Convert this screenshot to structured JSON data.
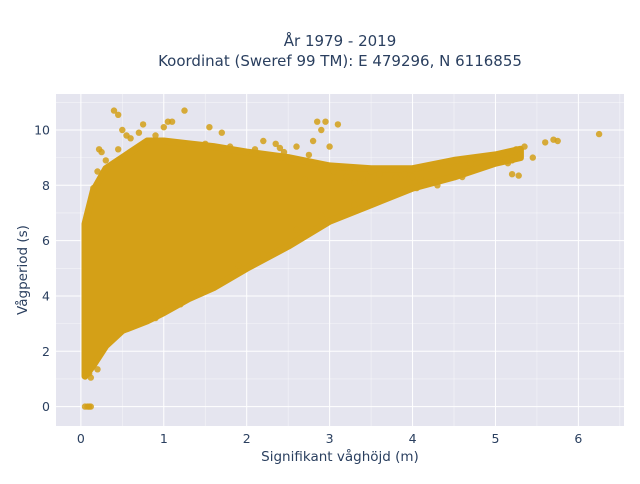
{
  "chart_data": {
    "type": "scatter",
    "title_lines": [
      "År 1979 - 2019",
      "Koordinat (Sweref 99 TM): E 479296, N 6116855"
    ],
    "xlabel": "Signifikant våghöjd (m)",
    "ylabel": "Vågperiod (s)",
    "xlim": [
      -0.3,
      6.55
    ],
    "ylim": [
      -0.7,
      11.3
    ],
    "xticks": [
      0,
      1,
      2,
      3,
      4,
      5,
      6
    ],
    "yticks": [
      0,
      2,
      4,
      6,
      8,
      10
    ],
    "grid": true,
    "legend": "none",
    "colors": {
      "marker": "#d4a017",
      "plot_background": "#e5e5ef",
      "grid": "#ffffff",
      "text": "#2a3f5f"
    },
    "envelope": {
      "description_hidden": true,
      "lower": [
        [
          0.05,
          1.1
        ],
        [
          0.15,
          1.5
        ],
        [
          0.3,
          2.2
        ],
        [
          0.5,
          2.75
        ],
        [
          0.8,
          3.1
        ],
        [
          1.0,
          3.4
        ],
        [
          1.3,
          3.9
        ],
        [
          1.6,
          4.3
        ],
        [
          2.0,
          5.0
        ],
        [
          2.5,
          5.8
        ],
        [
          3.0,
          6.7
        ],
        [
          3.5,
          7.3
        ],
        [
          4.0,
          7.9
        ],
        [
          4.5,
          8.3
        ],
        [
          5.0,
          8.8
        ],
        [
          5.3,
          9.0
        ]
      ],
      "upper": [
        [
          0.05,
          6.6
        ],
        [
          0.15,
          7.8
        ],
        [
          0.3,
          8.6
        ],
        [
          0.5,
          9.0
        ],
        [
          0.8,
          9.6
        ],
        [
          1.0,
          9.6
        ],
        [
          1.3,
          9.5
        ],
        [
          1.6,
          9.4
        ],
        [
          2.0,
          9.2
        ],
        [
          2.5,
          9.0
        ],
        [
          3.0,
          8.7
        ],
        [
          3.5,
          8.6
        ],
        [
          4.0,
          8.6
        ],
        [
          4.5,
          8.9
        ],
        [
          5.0,
          9.1
        ],
        [
          5.3,
          9.3
        ]
      ]
    },
    "points": [
      [
        0.05,
        0.0
      ],
      [
        0.08,
        0.0
      ],
      [
        0.1,
        0.0
      ],
      [
        0.12,
        0.0
      ],
      [
        0.05,
        1.6
      ],
      [
        0.1,
        1.2
      ],
      [
        0.12,
        1.05
      ],
      [
        0.2,
        1.35
      ],
      [
        0.06,
        2.0
      ],
      [
        0.08,
        3.3
      ],
      [
        0.05,
        4.5
      ],
      [
        0.05,
        5.5
      ],
      [
        0.07,
        6.6
      ],
      [
        0.4,
        10.7
      ],
      [
        0.45,
        10.55
      ],
      [
        0.5,
        10.0
      ],
      [
        0.55,
        9.8
      ],
      [
        0.6,
        9.7
      ],
      [
        0.7,
        9.9
      ],
      [
        0.75,
        10.2
      ],
      [
        0.9,
        9.8
      ],
      [
        1.0,
        10.1
      ],
      [
        1.05,
        10.3
      ],
      [
        1.1,
        10.3
      ],
      [
        1.25,
        10.7
      ],
      [
        1.55,
        10.1
      ],
      [
        1.7,
        9.9
      ],
      [
        1.5,
        9.5
      ],
      [
        0.22,
        9.3
      ],
      [
        0.25,
        9.2
      ],
      [
        0.3,
        8.9
      ],
      [
        0.2,
        8.5
      ],
      [
        0.15,
        7.9
      ],
      [
        2.0,
        9.2
      ],
      [
        2.2,
        9.6
      ],
      [
        2.35,
        9.5
      ],
      [
        2.45,
        9.2
      ],
      [
        2.6,
        9.4
      ],
      [
        2.75,
        9.1
      ],
      [
        2.8,
        9.6
      ],
      [
        2.9,
        10.0
      ],
      [
        2.95,
        10.3
      ],
      [
        3.0,
        9.4
      ],
      [
        3.1,
        10.2
      ],
      [
        2.85,
        10.3
      ],
      [
        2.5,
        8.9
      ],
      [
        2.7,
        8.2
      ],
      [
        3.05,
        8.5
      ],
      [
        3.2,
        8.3
      ],
      [
        3.3,
        8.1
      ],
      [
        3.4,
        8.2
      ],
      [
        3.5,
        8.5
      ],
      [
        3.6,
        8.4
      ],
      [
        3.7,
        8.6
      ],
      [
        3.8,
        8.3
      ],
      [
        3.9,
        8.4
      ],
      [
        4.0,
        8.3
      ],
      [
        4.1,
        8.2
      ],
      [
        4.2,
        8.6
      ],
      [
        4.3,
        8.7
      ],
      [
        4.4,
        8.7
      ],
      [
        4.5,
        8.6
      ],
      [
        4.6,
        8.9
      ],
      [
        4.7,
        8.8
      ],
      [
        4.8,
        9.0
      ],
      [
        4.9,
        9.0
      ],
      [
        5.0,
        9.0
      ],
      [
        5.05,
        8.9
      ],
      [
        5.15,
        8.8
      ],
      [
        5.2,
        8.9
      ],
      [
        5.25,
        9.3
      ],
      [
        5.3,
        9.1
      ],
      [
        5.35,
        9.4
      ],
      [
        5.45,
        9.0
      ],
      [
        5.2,
        8.4
      ],
      [
        5.28,
        8.35
      ],
      [
        5.6,
        9.55
      ],
      [
        5.7,
        9.65
      ],
      [
        5.75,
        9.6
      ],
      [
        6.25,
        9.85
      ],
      [
        4.05,
        7.9
      ],
      [
        4.3,
        8.0
      ],
      [
        4.6,
        8.3
      ],
      [
        4.2,
        8.1
      ],
      [
        3.55,
        7.5
      ],
      [
        3.3,
        7.3
      ],
      [
        2.9,
        6.9
      ],
      [
        2.6,
        6.4
      ],
      [
        2.2,
        5.5
      ],
      [
        1.9,
        5.1
      ],
      [
        1.4,
        4.3
      ],
      [
        1.2,
        3.7
      ],
      [
        0.9,
        3.2
      ],
      [
        0.45,
        9.3
      ],
      [
        0.8,
        9.6
      ],
      [
        1.3,
        9.5
      ],
      [
        1.8,
        9.4
      ],
      [
        2.1,
        9.3
      ],
      [
        2.4,
        9.35
      ]
    ]
  }
}
